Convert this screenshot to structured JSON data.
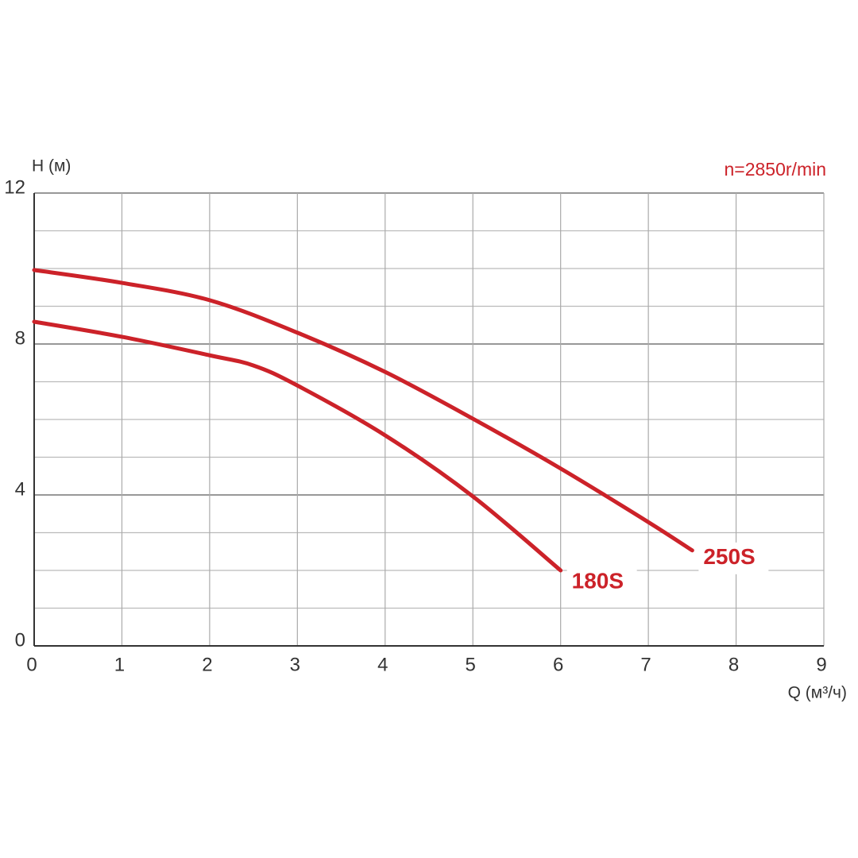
{
  "chart_data": {
    "type": "line",
    "y_label": "H (м)",
    "x_label": "Q (м³/ч)",
    "annotation": "n=2850r/min",
    "xlim": [
      0,
      9
    ],
    "xticks": [
      0,
      1,
      2,
      3,
      4,
      5,
      6,
      7,
      8,
      9
    ],
    "ylim": [
      0,
      12
    ],
    "yticks": [
      0,
      4,
      8,
      12
    ],
    "y_minor_ticks": [
      1,
      2,
      3,
      5,
      6,
      7,
      9,
      10,
      11
    ],
    "grid": true,
    "series": [
      {
        "name": "250S",
        "color": "#cc2229",
        "x": [
          0,
          1,
          2,
          3,
          4,
          5,
          6,
          7,
          7.5
        ],
        "values": [
          9.96,
          9.62,
          9.16,
          8.3,
          7.26,
          6.02,
          4.7,
          3.28,
          2.53
        ]
      },
      {
        "name": "180S",
        "color": "#cc2229",
        "x": [
          0,
          1,
          2,
          2.5,
          3,
          4,
          5,
          6
        ],
        "values": [
          8.59,
          8.19,
          7.7,
          7.43,
          6.9,
          5.58,
          3.96,
          2.0
        ]
      }
    ]
  }
}
